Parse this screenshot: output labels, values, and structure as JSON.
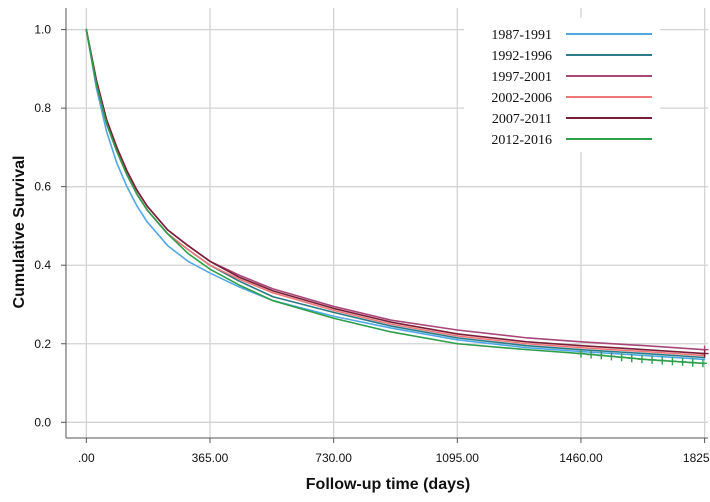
{
  "chart_data": {
    "type": "line",
    "title": "",
    "xlabel": "Follow-up time (days)",
    "ylabel": "Cumulative Survival",
    "xlim": [
      -60,
      1835
    ],
    "ylim": [
      -0.04,
      1.055
    ],
    "x_ticks": [
      0,
      365,
      730,
      1095,
      1460,
      1825
    ],
    "x_tick_labels": [
      ".00",
      "365.00",
      "730.00",
      "1095.00",
      "1460.00",
      "1825.00"
    ],
    "y_ticks": [
      0.0,
      0.2,
      0.4,
      0.6,
      0.8,
      1.0
    ],
    "y_tick_labels": [
      "0.0",
      "0.2",
      "0.4",
      "0.6",
      "0.8",
      "1.0"
    ],
    "grid": true,
    "legend_position": "top-right",
    "series": [
      {
        "name": "1987-1991",
        "color": "#4fa8e6",
        "x": [
          0,
          30,
          60,
          90,
          120,
          150,
          180,
          240,
          300,
          365,
          450,
          550,
          730,
          900,
          1095,
          1300,
          1460,
          1650,
          1825
        ],
        "y": [
          1.0,
          0.85,
          0.74,
          0.66,
          0.6,
          0.55,
          0.51,
          0.45,
          0.41,
          0.38,
          0.345,
          0.31,
          0.27,
          0.24,
          0.21,
          0.19,
          0.18,
          0.17,
          0.16
        ]
      },
      {
        "name": "1992-1996",
        "color": "#2b7a85",
        "x": [
          0,
          30,
          60,
          90,
          120,
          150,
          180,
          240,
          300,
          365,
          450,
          550,
          730,
          900,
          1095,
          1300,
          1460,
          1650,
          1825
        ],
        "y": [
          1.0,
          0.86,
          0.76,
          0.69,
          0.63,
          0.58,
          0.54,
          0.48,
          0.44,
          0.4,
          0.36,
          0.32,
          0.28,
          0.245,
          0.215,
          0.195,
          0.185,
          0.175,
          0.165
        ]
      },
      {
        "name": "1997-2001",
        "color": "#a84878",
        "x": [
          0,
          30,
          60,
          90,
          120,
          150,
          180,
          240,
          300,
          365,
          450,
          550,
          730,
          900,
          1095,
          1300,
          1460,
          1650,
          1825
        ],
        "y": [
          1.0,
          0.87,
          0.77,
          0.7,
          0.64,
          0.59,
          0.55,
          0.49,
          0.45,
          0.41,
          0.375,
          0.34,
          0.295,
          0.26,
          0.235,
          0.215,
          0.205,
          0.195,
          0.185
        ]
      },
      {
        "name": "2002-2006",
        "color": "#f07878",
        "x": [
          0,
          30,
          60,
          90,
          120,
          150,
          180,
          240,
          300,
          365,
          450,
          550,
          730,
          900,
          1095,
          1300,
          1460,
          1650,
          1825
        ],
        "y": [
          1.0,
          0.86,
          0.76,
          0.69,
          0.63,
          0.58,
          0.54,
          0.48,
          0.44,
          0.4,
          0.365,
          0.33,
          0.285,
          0.25,
          0.22,
          0.2,
          0.19,
          0.18,
          0.17
        ]
      },
      {
        "name": "2007-2011",
        "color": "#7a1e3a",
        "x": [
          0,
          30,
          60,
          90,
          120,
          150,
          180,
          240,
          300,
          365,
          450,
          550,
          730,
          900,
          1095,
          1300,
          1460,
          1650,
          1825
        ],
        "y": [
          1.0,
          0.87,
          0.77,
          0.7,
          0.64,
          0.59,
          0.55,
          0.49,
          0.45,
          0.41,
          0.37,
          0.335,
          0.29,
          0.255,
          0.225,
          0.205,
          0.195,
          0.185,
          0.175
        ]
      },
      {
        "name": "2012-2016",
        "color": "#2e9e4a",
        "x": [
          0,
          30,
          60,
          90,
          120,
          150,
          180,
          240,
          300,
          365,
          450,
          550,
          730,
          900,
          1095,
          1300,
          1460,
          1650,
          1825
        ],
        "y": [
          1.0,
          0.86,
          0.76,
          0.69,
          0.63,
          0.58,
          0.54,
          0.48,
          0.43,
          0.39,
          0.35,
          0.31,
          0.265,
          0.23,
          0.2,
          0.185,
          0.175,
          0.16,
          0.15
        ]
      }
    ],
    "censor_marks": [
      {
        "series_index": 5,
        "x": [
          1460,
          1490,
          1520,
          1550,
          1580,
          1610,
          1640,
          1670,
          1700,
          1730,
          1760,
          1790,
          1820
        ]
      },
      {
        "series_index": 2,
        "x": [
          1825
        ]
      },
      {
        "series_index": 4,
        "x": [
          1825
        ]
      }
    ]
  }
}
